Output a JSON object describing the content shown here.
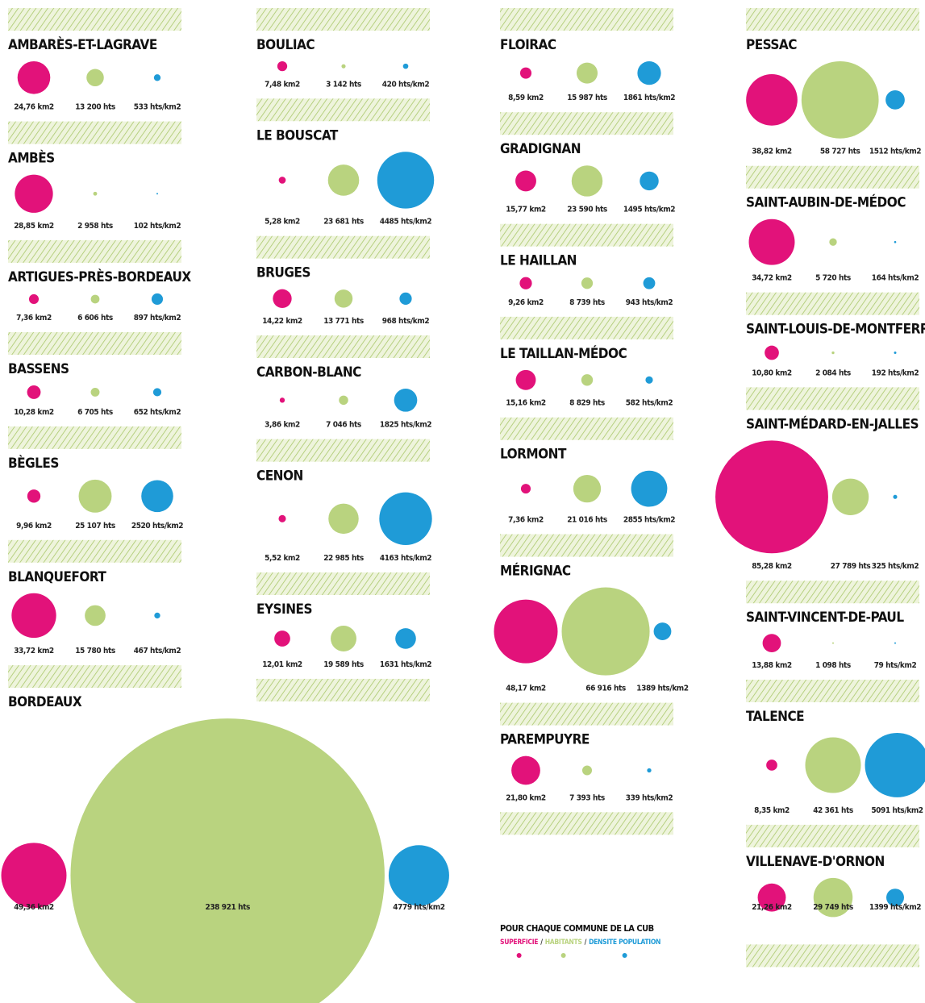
{
  "chart_data": {
    "type": "bubble",
    "categories": [
      "AMBARÈS-ET-LAGRAVE",
      "AMBÈS",
      "ARTIGUES-PRÈS-BORDEAUX",
      "BASSENS",
      "BÈGLES",
      "BLANQUEFORT",
      "BORDEAUX",
      "BOULIAC",
      "LE BOUSCAT",
      "BRUGES",
      "CARBON-BLANC",
      "CENON",
      "EYSINES",
      "FLOIRAC",
      "GRADIGNAN",
      "LE HAILLAN",
      "LE TAILLAN-MÉDOC",
      "LORMONT",
      "MÉRIGNAC",
      "PAREMPUYRE",
      "PESSAC",
      "SAINT-AUBIN-DE-MÉDOC",
      "SAINT-LOUIS-DE-MONTFERRAND",
      "SAINT-MÉDARD-EN-JALLES",
      "SAINT-VINCENT-DE-PAUL",
      "TALENCE",
      "VILLENAVE-D'ORNON"
    ],
    "series": [
      {
        "name": "SUPERFICIE",
        "color": "#e2127a",
        "values": [
          24.76,
          28.85,
          7.36,
          10.28,
          9.96,
          33.72,
          49.36,
          7.48,
          5.28,
          14.22,
          3.86,
          5.52,
          12.01,
          8.59,
          15.77,
          9.26,
          15.16,
          7.36,
          48.17,
          21.8,
          38.82,
          34.72,
          10.8,
          85.28,
          13.88,
          8.35,
          21.26
        ],
        "value_labels": [
          "24,76 km2",
          "28,85 km2",
          "7,36 km2",
          "10,28 km2",
          "9,96 km2",
          "33,72 km2",
          "49,36 km2",
          "7,48 km2",
          "5,28 km2",
          "14,22 km2",
          "3,86 km2",
          "5,52 km2",
          "12,01 km2",
          "8,59 km2",
          "15,77 km2",
          "9,26 km2",
          "15,16 km2",
          "7,36 km2",
          "48,17 km2",
          "21,80 km2",
          "38,82 km2",
          "34,72 km2",
          "10,80 km2",
          "85,28 km2",
          "13,88 km2",
          "8,35 km2",
          "21,26 km2"
        ]
      },
      {
        "name": "HABITANTS",
        "color": "#b9d37f",
        "values": [
          13200,
          2958,
          6606,
          6705,
          25107,
          15780,
          238921,
          3142,
          23681,
          13771,
          7046,
          22985,
          19589,
          15987,
          23590,
          8739,
          8829,
          21016,
          66916,
          7393,
          58727,
          5720,
          2084,
          27789,
          1098,
          42361,
          29749
        ],
        "value_labels": [
          "13 200 hts",
          "2 958 hts",
          "6 606 hts",
          "6 705 hts",
          "25 107 hts",
          "15 780 hts",
          "238 921 hts",
          "3 142 hts",
          "23 681 hts",
          "13 771 hts",
          "7 046 hts",
          "22 985 hts",
          "19 589 hts",
          "15 987 hts",
          "23 590 hts",
          "8 739 hts",
          "8 829 hts",
          "21 016 hts",
          "66 916 hts",
          "7 393 hts",
          "58 727 hts",
          "5 720 hts",
          "2 084 hts",
          "27 789 hts",
          "1 098 hts",
          "42 361 hts",
          "29 749 hts"
        ]
      },
      {
        "name": "DENSITE POPULATION",
        "color": "#1f9bd7",
        "values": [
          533,
          102,
          897,
          652,
          2520,
          467,
          4779,
          420,
          4485,
          968,
          1825,
          4163,
          1631,
          1861,
          1495,
          943,
          582,
          2855,
          1389,
          339,
          1512,
          164,
          192,
          325,
          79,
          5091,
          1399
        ],
        "value_labels": [
          "533 hts/km2",
          "102 hts/km2",
          "897 hts/km2",
          "652 hts/km2",
          "2520 hts/km2",
          "467 hts/km2",
          "4779 hts/km2",
          "420 hts/km2",
          "4485 hts/km2",
          "968 hts/km2",
          "1825 hts/km2",
          "4163 hts/km2",
          "1631 hts/km2",
          "1861 hts/km2",
          "1495 hts/km2",
          "943 hts/km2",
          "582 hts/km2",
          "2855 hts/km2",
          "1389 hts/km2",
          "339 hts/km2",
          "1512 hts/km2",
          "164 hts/km2",
          "192 hts/km2",
          "325 hts/km2",
          "79 hts/km2",
          "5091 hts/km2",
          "1399 hts/km2"
        ]
      }
    ],
    "legend": {
      "title": "POUR CHAQUE COMMUNE DE LA CUB",
      "separator": "/"
    }
  }
}
